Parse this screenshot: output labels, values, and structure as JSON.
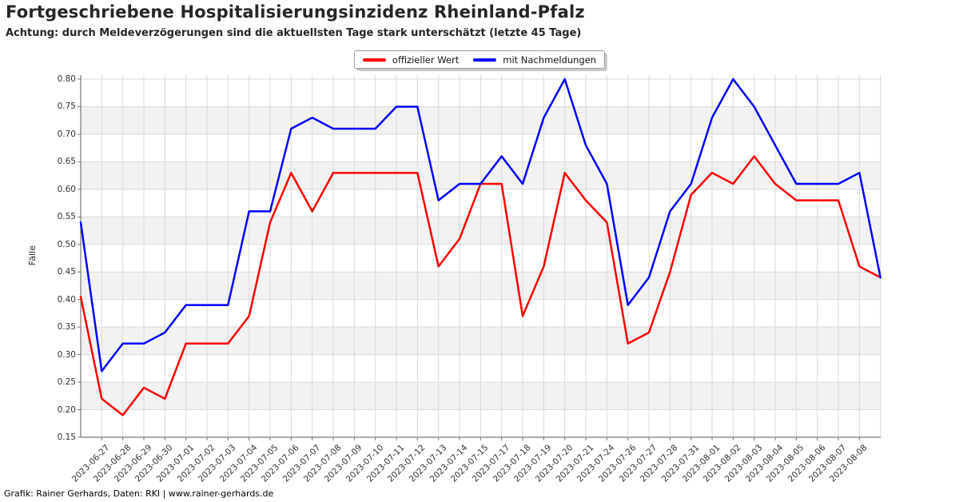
{
  "title": "Fortgeschriebene Hospitalisierungsinzidenz Rheinland-Pfalz",
  "subtitle": "Achtung: durch Meldeverzögerungen sind die aktuellsten Tage stark unterschätzt (letzte 45 Tage)",
  "footer": "Grafik: Rainer Gerhards, Daten: RKI | www.rainer-gerhards.de",
  "legend": {
    "items": [
      {
        "label": "offizieller Wert",
        "color": "#ff0000"
      },
      {
        "label": "mit Nachmeldungen",
        "color": "#0000ff"
      }
    ]
  },
  "chart_data": {
    "type": "line",
    "title": "Fortgeschriebene Hospitalisierungsinzidenz Rheinland-Pfalz",
    "xlabel": "",
    "ylabel": "Fälle",
    "ylim": [
      0.15,
      0.8
    ],
    "ytick_step": 0.05,
    "grid": true,
    "band_color": "#f2f2f2",
    "grid_color": "#d9d9d9",
    "spine_color": "#777777",
    "legend_position": "top-center",
    "note": "first and last points sit on the plot edges without tick labels",
    "categories": [
      "",
      "2023-06-27",
      "2023-06-28",
      "2023-06-29",
      "2023-06-30",
      "2023-07-01",
      "2023-07-02",
      "2023-07-03",
      "2023-07-04",
      "2023-07-05",
      "2023-07-06",
      "2023-07-07",
      "2023-07-08",
      "2023-07-09",
      "2023-07-10",
      "2023-07-11",
      "2023-07-12",
      "2023-07-13",
      "2023-07-14",
      "2023-07-15",
      "2023-07-17",
      "2023-07-18",
      "2023-07-19",
      "2023-07-20",
      "2023-07-21",
      "2023-07-24",
      "2023-07-26",
      "2023-07-27",
      "2023-07-28",
      "2023-07-31",
      "2023-08-01",
      "2023-08-02",
      "2023-08-03",
      "2023-08-04",
      "2023-08-05",
      "2023-08-06",
      "2023-08-07",
      "2023-08-08",
      ""
    ],
    "series": [
      {
        "name": "offizieller Wert",
        "color": "#ff0000",
        "values": [
          0.405,
          0.22,
          0.19,
          0.24,
          0.22,
          0.32,
          0.32,
          0.32,
          0.37,
          0.54,
          0.63,
          0.56,
          0.63,
          0.63,
          0.63,
          0.63,
          0.63,
          0.46,
          0.51,
          0.61,
          0.61,
          0.37,
          0.46,
          0.63,
          0.58,
          0.54,
          0.32,
          0.34,
          0.45,
          0.59,
          0.63,
          0.61,
          0.66,
          0.61,
          0.58,
          0.58,
          0.58,
          0.46,
          0.44
        ]
      },
      {
        "name": "mit Nachmeldungen",
        "color": "#0000ff",
        "values": [
          0.54,
          0.27,
          0.32,
          0.32,
          0.34,
          0.39,
          0.39,
          0.39,
          0.56,
          0.56,
          0.71,
          0.73,
          0.71,
          0.71,
          0.71,
          0.75,
          0.75,
          0.58,
          0.61,
          0.61,
          0.66,
          0.61,
          0.73,
          0.8,
          0.68,
          0.61,
          0.39,
          0.44,
          0.56,
          0.61,
          0.73,
          0.8,
          0.75,
          0.68,
          0.61,
          0.61,
          0.61,
          0.63,
          0.44
        ]
      }
    ]
  }
}
